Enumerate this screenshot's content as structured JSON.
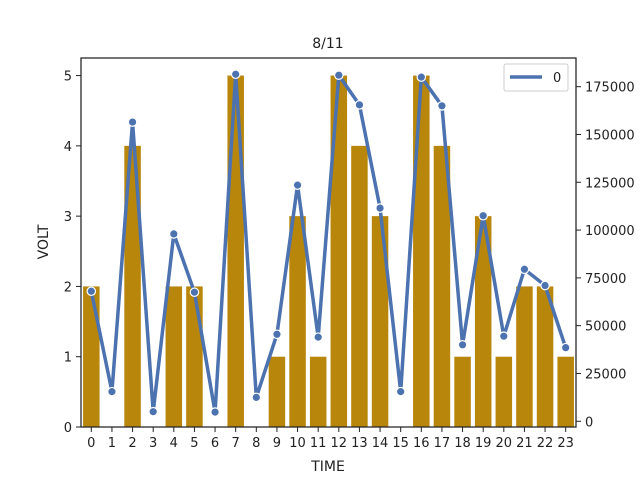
{
  "chart_data": {
    "type": "bar",
    "title": "8/11",
    "xlabel": "TIME",
    "ylabel": "VOLT",
    "categories": [
      "0",
      "1",
      "2",
      "3",
      "4",
      "5",
      "6",
      "7",
      "8",
      "9",
      "10",
      "11",
      "12",
      "13",
      "14",
      "15",
      "16",
      "17",
      "18",
      "19",
      "20",
      "21",
      "22",
      "23"
    ],
    "series": [
      {
        "type": "bar",
        "axis": "left",
        "values": [
          2,
          0,
          4,
          0,
          2,
          2,
          0,
          5,
          0,
          1,
          3,
          1,
          5,
          4,
          3,
          0,
          5,
          4,
          1,
          3,
          1,
          2,
          2,
          1
        ],
        "color": "#b8860b"
      },
      {
        "type": "line",
        "axis": "right",
        "name": "0",
        "values": [
          68000,
          15500,
          156500,
          5000,
          98000,
          67500,
          4800,
          181500,
          12500,
          45500,
          123500,
          44000,
          181000,
          165500,
          111500,
          15500,
          180000,
          165000,
          40000,
          107500,
          44500,
          79500,
          71000,
          38500
        ],
        "color": "#4c72b0"
      }
    ],
    "ylim": [
      0,
      5.25
    ],
    "yticks": [
      0,
      1,
      2,
      3,
      4,
      5
    ],
    "y2lim": [
      -3000,
      190000
    ],
    "y2ticks": [
      0,
      25000,
      50000,
      75000,
      100000,
      125000,
      150000,
      175000
    ],
    "grid": false,
    "legend": {
      "position": "top-right",
      "entries": [
        "0"
      ]
    }
  }
}
